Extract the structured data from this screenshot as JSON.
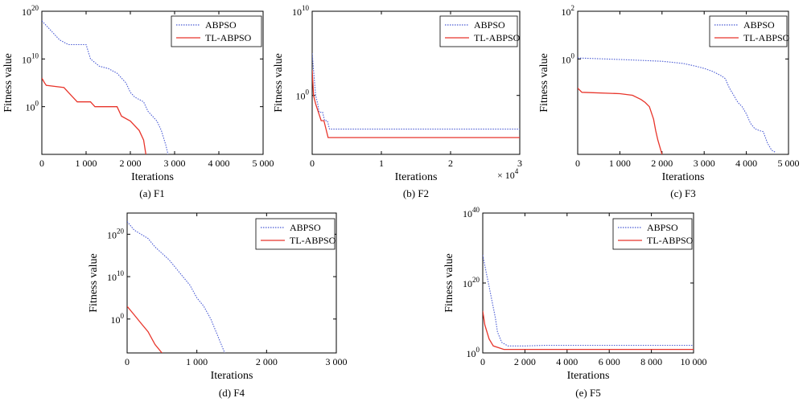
{
  "chart_data": [
    {
      "id": "F1",
      "type": "line",
      "caption": "(a) F1",
      "xlabel": "Iterations",
      "ylabel": "Fitness value",
      "xscale": "linear",
      "yscale": "log",
      "xlim": [
        0,
        5000
      ],
      "ylim": [
        1e-10,
        1e+20
      ],
      "xticks": [
        0,
        1000,
        2000,
        3000,
        4000,
        5000
      ],
      "xtick_labels": [
        "0",
        "1 000",
        "2 000",
        "3 000",
        "4 000",
        "5 000"
      ],
      "yticks": [
        {
          "value": 1e+20,
          "base": "10",
          "exp": "20"
        },
        {
          "value": 10000000000.0,
          "base": "10",
          "exp": "10"
        },
        {
          "value": 1,
          "base": "10",
          "exp": "0"
        }
      ],
      "legend": {
        "position": "top-right"
      },
      "series": [
        {
          "name": "ABPSO",
          "color": "#4a5bd4",
          "style": "dotted",
          "points": [
            [
              0,
              1e+18
            ],
            [
              200,
              1e+16
            ],
            [
              400,
              100000000000000.0
            ],
            [
              600,
              10000000000000.0
            ],
            [
              800,
              10000000000000.0
            ],
            [
              1000,
              10000000000000.0
            ],
            [
              1100,
              10000000000.0
            ],
            [
              1300,
              300000000.0
            ],
            [
              1500,
              100000000.0
            ],
            [
              1700,
              10000000.0
            ],
            [
              1900,
              100000.0
            ],
            [
              2000,
              1000.0
            ],
            [
              2100,
              100.0
            ],
            [
              2300,
              10.0
            ],
            [
              2400,
              0.1
            ],
            [
              2500,
              0.01
            ],
            [
              2600,
              0.001
            ],
            [
              2700,
              1e-05
            ],
            [
              2800,
              1e-08
            ],
            [
              2850,
              1e-10
            ]
          ]
        },
        {
          "name": "TL-ABPSO",
          "color": "#e8352b",
          "style": "solid",
          "points": [
            [
              0,
              1000000.0
            ],
            [
              60,
              100000.0
            ],
            [
              100,
              30000.0
            ],
            [
              500,
              10000.0
            ],
            [
              600,
              1000.0
            ],
            [
              700,
              100.0
            ],
            [
              800,
              10.0
            ],
            [
              1000,
              10.0
            ],
            [
              1100,
              10.0
            ],
            [
              1200,
              1.0
            ],
            [
              1700,
              1.0
            ],
            [
              1800,
              0.01
            ],
            [
              2000,
              0.001
            ],
            [
              2200,
              1e-05
            ],
            [
              2300,
              1e-07
            ],
            [
              2350,
              1e-10
            ]
          ]
        }
      ]
    },
    {
      "id": "F2",
      "type": "line",
      "caption": "(b) F2",
      "xlabel": "Iterations",
      "ylabel": "Fitness value",
      "xscale": "linear",
      "yscale": "log",
      "xlim": [
        0,
        30000
      ],
      "ylim": [
        1e-07,
        10000000000.0
      ],
      "xticks": [
        0,
        10000,
        20000,
        30000
      ],
      "xtick_labels": [
        "0",
        "1",
        "2",
        "3"
      ],
      "x_multiplier": {
        "base": "× 10",
        "exp": "4"
      },
      "yticks": [
        {
          "value": 10000000000.0,
          "base": "10",
          "exp": "10"
        },
        {
          "value": 1,
          "base": "10",
          "exp": "0"
        }
      ],
      "legend": {
        "position": "top-right"
      },
      "series": [
        {
          "name": "ABPSO",
          "color": "#4a5bd4",
          "style": "dotted",
          "points": [
            [
              0,
              100000.0
            ],
            [
              200,
              1000.0
            ],
            [
              500,
              1.0
            ],
            [
              800,
              0.1
            ],
            [
              1000,
              0.01
            ],
            [
              1200,
              0.01
            ],
            [
              1500,
              0.01
            ],
            [
              1800,
              0.001
            ],
            [
              2200,
              0.001
            ],
            [
              2500,
              0.0001
            ],
            [
              3000,
              0.0001
            ],
            [
              4000,
              0.0001
            ],
            [
              30000,
              0.0001
            ]
          ]
        },
        {
          "name": "TL-ABPSO",
          "color": "#e8352b",
          "style": "solid",
          "points": [
            [
              0,
              1000.0
            ],
            [
              200,
              1.0
            ],
            [
              500,
              0.1
            ],
            [
              900,
              0.01
            ],
            [
              1300,
              0.001
            ],
            [
              1700,
              0.001
            ],
            [
              2000,
              0.0001
            ],
            [
              2300,
              1e-05
            ],
            [
              2700,
              1e-05
            ],
            [
              3200,
              1e-05
            ],
            [
              4000,
              1e-05
            ],
            [
              30000,
              1e-05
            ]
          ]
        }
      ]
    },
    {
      "id": "F3",
      "type": "line",
      "caption": "(c) F3",
      "xlabel": "Iterations",
      "ylabel": "Fitness value",
      "xscale": "linear",
      "yscale": "log",
      "xlim": [
        0,
        5000
      ],
      "ylim": [
        0.0001,
        100.0
      ],
      "xticks": [
        0,
        1000,
        2000,
        3000,
        4000,
        5000
      ],
      "xtick_labels": [
        "0",
        "1 000",
        "2 000",
        "3 000",
        "4 000",
        "5 000"
      ],
      "yticks": [
        {
          "value": 100,
          "base": "10",
          "exp": "2"
        },
        {
          "value": 1,
          "base": "10",
          "exp": "0"
        }
      ],
      "legend": {
        "position": "top-right"
      },
      "series": [
        {
          "name": "ABPSO",
          "color": "#4a5bd4",
          "style": "dotted",
          "points": [
            [
              0,
              1.1
            ],
            [
              1000,
              0.95
            ],
            [
              2000,
              0.8
            ],
            [
              2500,
              0.65
            ],
            [
              2800,
              0.5
            ],
            [
              3000,
              0.4
            ],
            [
              3200,
              0.3
            ],
            [
              3400,
              0.2
            ],
            [
              3500,
              0.15
            ],
            [
              3600,
              0.06
            ],
            [
              3700,
              0.03
            ],
            [
              3800,
              0.015
            ],
            [
              3900,
              0.01
            ],
            [
              4000,
              0.005
            ],
            [
              4100,
              0.002
            ],
            [
              4200,
              0.0012
            ],
            [
              4300,
              0.001
            ],
            [
              4400,
              0.0009
            ],
            [
              4500,
              0.0003
            ],
            [
              4600,
              0.00015
            ],
            [
              4700,
              0.00012
            ]
          ]
        },
        {
          "name": "TL-ABPSO",
          "color": "#e8352b",
          "style": "solid",
          "points": [
            [
              0,
              0.06
            ],
            [
              100,
              0.04
            ],
            [
              1000,
              0.035
            ],
            [
              1300,
              0.03
            ],
            [
              1500,
              0.02
            ],
            [
              1600,
              0.015
            ],
            [
              1700,
              0.01
            ],
            [
              1800,
              0.003
            ],
            [
              1850,
              0.001
            ],
            [
              1900,
              0.0004
            ],
            [
              1950,
              0.0002
            ],
            [
              2000,
              0.0001
            ]
          ]
        }
      ]
    },
    {
      "id": "F4",
      "type": "line",
      "caption": "(d) F4",
      "xlabel": "Iterations",
      "ylabel": "Fitness value",
      "xscale": "linear",
      "yscale": "log",
      "xlim": [
        0,
        3000
      ],
      "ylim": [
        1e-08,
        1e+25
      ],
      "xticks": [
        0,
        1000,
        2000,
        3000
      ],
      "xtick_labels": [
        "0",
        "1 000",
        "2 000",
        "3 000"
      ],
      "yticks": [
        {
          "value": 1e+20,
          "base": "10",
          "exp": "20"
        },
        {
          "value": 10000000000.0,
          "base": "10",
          "exp": "10"
        },
        {
          "value": 1,
          "base": "10",
          "exp": "0"
        }
      ],
      "legend": {
        "position": "top-right"
      },
      "series": [
        {
          "name": "ABPSO",
          "color": "#4a5bd4",
          "style": "dotted",
          "points": [
            [
              0,
              1e+23
            ],
            [
              100,
              1e+21
            ],
            [
              200,
              1e+20
            ],
            [
              300,
              1e+19
            ],
            [
              400,
              1e+17
            ],
            [
              600,
              100000000000000.0
            ],
            [
              800,
              10000000000.0
            ],
            [
              900,
              100000000.0
            ],
            [
              1000,
              100000.0
            ],
            [
              1100,
              1000.0
            ],
            [
              1200,
              1.0
            ],
            [
              1300,
              0.0001
            ],
            [
              1400,
              1e-08
            ]
          ]
        },
        {
          "name": "TL-ABPSO",
          "color": "#e8352b",
          "style": "solid",
          "points": [
            [
              0,
              1000.0
            ],
            [
              100,
              10.0
            ],
            [
              200,
              0.1
            ],
            [
              300,
              0.001
            ],
            [
              400,
              1e-06
            ],
            [
              500,
              1e-08
            ]
          ]
        }
      ]
    },
    {
      "id": "F5",
      "type": "line",
      "caption": "(e) F5",
      "xlabel": "Iterations",
      "ylabel": "Fitness value",
      "xscale": "linear",
      "yscale": "log",
      "xlim": [
        0,
        10000
      ],
      "ylim": [
        1,
        1e+40
      ],
      "xticks": [
        0,
        2000,
        4000,
        6000,
        8000,
        10000
      ],
      "xtick_labels": [
        "0",
        "2 000",
        "4 000",
        "6 000",
        "8 000",
        "10 000"
      ],
      "yticks": [
        {
          "value": 1e+40,
          "base": "10",
          "exp": "40"
        },
        {
          "value": 1e+20,
          "base": "10",
          "exp": "20"
        },
        {
          "value": 1,
          "base": "10",
          "exp": "0"
        }
      ],
      "legend": {
        "position": "top-right"
      },
      "series": [
        {
          "name": "ABPSO",
          "color": "#4a5bd4",
          "style": "dotted",
          "points": [
            [
              0,
              1e+28
            ],
            [
              100,
              1e+25
            ],
            [
              200,
              1e+22
            ],
            [
              300,
              1e+19
            ],
            [
              400,
              1e+16
            ],
            [
              500,
              10000000000000.0
            ],
            [
              600,
              10000000000.0
            ],
            [
              700,
              1000000.0
            ],
            [
              900,
              1000.0
            ],
            [
              1200,
              100.0
            ],
            [
              2000,
              100.0
            ],
            [
              3000,
              150.0
            ],
            [
              10000,
              150.0
            ]
          ]
        },
        {
          "name": "TL-ABPSO",
          "color": "#e8352b",
          "style": "solid",
          "points": [
            [
              0,
              1000000000000.0
            ],
            [
              100,
              100000000.0
            ],
            [
              300,
              10000.0
            ],
            [
              500,
              100.0
            ],
            [
              1000,
              10.0
            ],
            [
              10000,
              10.0
            ]
          ]
        }
      ]
    }
  ]
}
